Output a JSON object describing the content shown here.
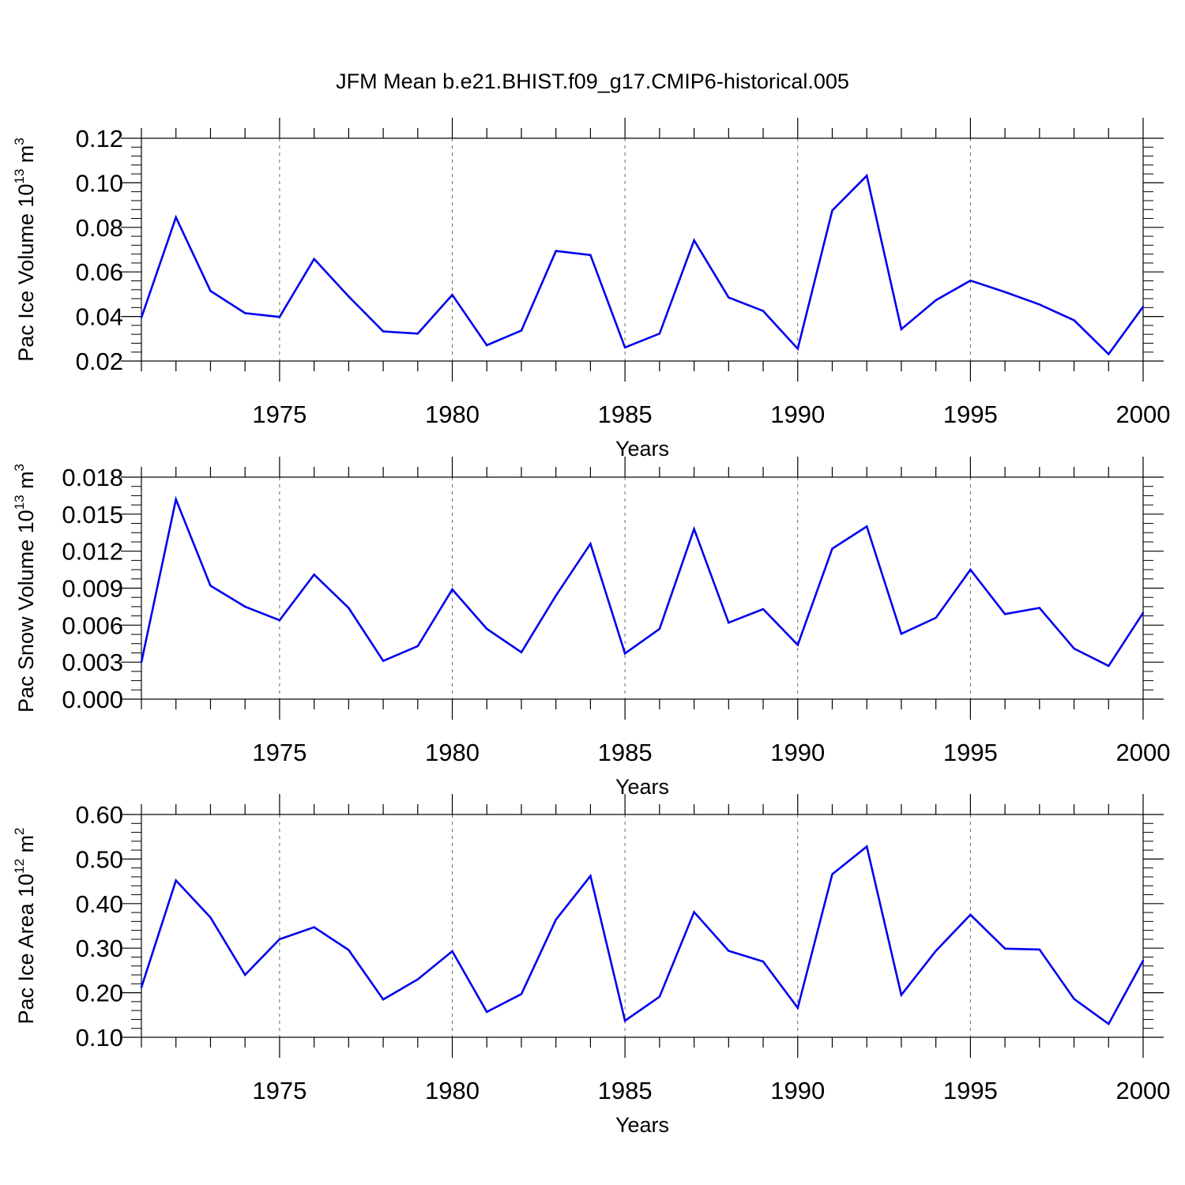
{
  "title": "JFM Mean b.e21.BHIST.f09_g17.CMIP6-historical.005",
  "colors": {
    "series": "#0000ee",
    "frame": "#000000",
    "grid": "#666666"
  },
  "chart_data": [
    {
      "type": "line",
      "ylabel": {
        "text": "Pac Ice Volume 10",
        "exp": "13",
        "unit": " m",
        "unit_exp": "3"
      },
      "xlabel": "Years",
      "xlim": [
        1971,
        2000
      ],
      "ylim": [
        0.02,
        0.12
      ],
      "yticks": [
        "0.02",
        "0.04",
        "0.06",
        "0.08",
        "0.10",
        "0.12"
      ],
      "xticks": [
        1975,
        1980,
        1985,
        1990,
        1995,
        2000
      ],
      "grid": "vertical-dashed",
      "x": [
        1971,
        1972,
        1973,
        1974,
        1975,
        1976,
        1977,
        1978,
        1979,
        1980,
        1981,
        1982,
        1983,
        1984,
        1985,
        1986,
        1987,
        1988,
        1989,
        1990,
        1991,
        1992,
        1993,
        1994,
        1995,
        1996,
        1997,
        1998,
        1999,
        2000
      ],
      "values": [
        0.0395,
        0.0845,
        0.0515,
        0.0415,
        0.0398,
        0.0658,
        0.049,
        0.0333,
        0.0323,
        0.0497,
        0.0271,
        0.0337,
        0.0694,
        0.0676,
        0.0261,
        0.0323,
        0.0742,
        0.0485,
        0.0425,
        0.0255,
        0.0876,
        0.1032,
        0.0343,
        0.0473,
        0.0561,
        0.051,
        0.0454,
        0.0383,
        0.0231,
        0.0444
      ]
    },
    {
      "type": "line",
      "ylabel": {
        "text": "Pac Snow Volume 10",
        "exp": "13",
        "unit": " m",
        "unit_exp": "3"
      },
      "xlabel": "Years",
      "xlim": [
        1971,
        2000
      ],
      "ylim": [
        0.0,
        0.018
      ],
      "yticks": [
        "0.000",
        "0.003",
        "0.006",
        "0.009",
        "0.012",
        "0.015",
        "0.018"
      ],
      "xticks": [
        1975,
        1980,
        1985,
        1990,
        1995,
        2000
      ],
      "grid": "vertical-dashed",
      "x": [
        1971,
        1972,
        1973,
        1974,
        1975,
        1976,
        1977,
        1978,
        1979,
        1980,
        1981,
        1982,
        1983,
        1984,
        1985,
        1986,
        1987,
        1988,
        1989,
        1990,
        1991,
        1992,
        1993,
        1994,
        1995,
        1996,
        1997,
        1998,
        1999,
        2000
      ],
      "values": [
        0.003,
        0.0162,
        0.0092,
        0.0075,
        0.0064,
        0.0101,
        0.0074,
        0.0031,
        0.0043,
        0.0089,
        0.0057,
        0.0038,
        0.0084,
        0.0126,
        0.0037,
        0.0057,
        0.0138,
        0.0062,
        0.0073,
        0.0044,
        0.0122,
        0.014,
        0.0053,
        0.0066,
        0.0105,
        0.0069,
        0.0074,
        0.0041,
        0.0027,
        0.007
      ]
    },
    {
      "type": "line",
      "ylabel": {
        "text": "Pac Ice Area 10",
        "exp": "12",
        "unit": " m",
        "unit_exp": "2"
      },
      "xlabel": "Years",
      "xlim": [
        1971,
        2000
      ],
      "ylim": [
        0.1,
        0.6
      ],
      "yticks": [
        "0.10",
        "0.20",
        "0.30",
        "0.40",
        "0.50",
        "0.60"
      ],
      "xticks": [
        1975,
        1980,
        1985,
        1990,
        1995,
        2000
      ],
      "grid": "vertical-dashed",
      "x": [
        1971,
        1972,
        1973,
        1974,
        1975,
        1976,
        1977,
        1978,
        1979,
        1980,
        1981,
        1982,
        1983,
        1984,
        1985,
        1986,
        1987,
        1988,
        1989,
        1990,
        1991,
        1992,
        1993,
        1994,
        1995,
        1996,
        1997,
        1998,
        1999,
        2000
      ],
      "values": [
        0.212,
        0.452,
        0.369,
        0.24,
        0.32,
        0.347,
        0.296,
        0.185,
        0.23,
        0.293,
        0.157,
        0.197,
        0.364,
        0.462,
        0.137,
        0.191,
        0.381,
        0.294,
        0.27,
        0.166,
        0.466,
        0.528,
        0.195,
        0.294,
        0.375,
        0.299,
        0.297,
        0.186,
        0.13,
        0.272
      ]
    }
  ]
}
